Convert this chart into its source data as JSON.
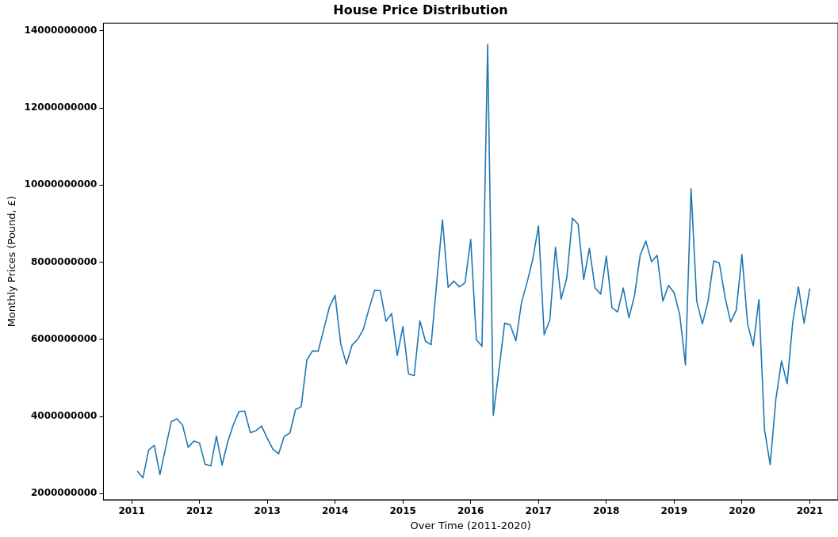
{
  "chart_data": {
    "type": "line",
    "title": "House Price Distribution",
    "xlabel": "Over Time (2011-2020)",
    "ylabel": "Monthly Prices (Pound, £)",
    "x": [
      "2011-02",
      "2011-03",
      "2011-04",
      "2011-05",
      "2011-06",
      "2011-07",
      "2011-08",
      "2011-09",
      "2011-10",
      "2011-11",
      "2011-12",
      "2012-01",
      "2012-02",
      "2012-03",
      "2012-04",
      "2012-05",
      "2012-06",
      "2012-07",
      "2012-08",
      "2012-09",
      "2012-10",
      "2012-11",
      "2012-12",
      "2013-01",
      "2013-02",
      "2013-03",
      "2013-04",
      "2013-05",
      "2013-06",
      "2013-07",
      "2013-08",
      "2013-09",
      "2013-10",
      "2013-11",
      "2013-12",
      "2014-01",
      "2014-02",
      "2014-03",
      "2014-04",
      "2014-05",
      "2014-06",
      "2014-07",
      "2014-08",
      "2014-09",
      "2014-10",
      "2014-11",
      "2014-12",
      "2015-01",
      "2015-02",
      "2015-03",
      "2015-04",
      "2015-05",
      "2015-06",
      "2015-07",
      "2015-08",
      "2015-09",
      "2015-10",
      "2015-11",
      "2015-12",
      "2016-01",
      "2016-02",
      "2016-03",
      "2016-04",
      "2016-05",
      "2016-06",
      "2016-07",
      "2016-08",
      "2016-09",
      "2016-10",
      "2016-11",
      "2016-12",
      "2017-01",
      "2017-02",
      "2017-03",
      "2017-04",
      "2017-05",
      "2017-06",
      "2017-07",
      "2017-08",
      "2017-09",
      "2017-10",
      "2017-11",
      "2017-12",
      "2018-01",
      "2018-02",
      "2018-03",
      "2018-04",
      "2018-05",
      "2018-06",
      "2018-07",
      "2018-08",
      "2018-09",
      "2018-10",
      "2018-11",
      "2018-12",
      "2019-01",
      "2019-02",
      "2019-03",
      "2019-04",
      "2019-05",
      "2019-06",
      "2019-07",
      "2019-08",
      "2019-09",
      "2019-10",
      "2019-11",
      "2019-12",
      "2020-01",
      "2020-02",
      "2020-03",
      "2020-04",
      "2020-05",
      "2020-06",
      "2020-07",
      "2020-08",
      "2020-09",
      "2020-10",
      "2020-11",
      "2020-12",
      "2021-01"
    ],
    "series": [
      {
        "color": "#1f77b4",
        "values": [
          2580000000,
          2410000000,
          3130000000,
          3250000000,
          2490000000,
          3180000000,
          3860000000,
          3940000000,
          3780000000,
          3200000000,
          3360000000,
          3310000000,
          2760000000,
          2720000000,
          3490000000,
          2740000000,
          3340000000,
          3790000000,
          4130000000,
          4140000000,
          3580000000,
          3630000000,
          3750000000,
          3430000000,
          3150000000,
          3030000000,
          3480000000,
          3570000000,
          4180000000,
          4250000000,
          5460000000,
          5700000000,
          5690000000,
          6260000000,
          6840000000,
          7140000000,
          5880000000,
          5360000000,
          5850000000,
          6000000000,
          6260000000,
          6790000000,
          7270000000,
          7260000000,
          6470000000,
          6670000000,
          5580000000,
          6330000000,
          5100000000,
          5060000000,
          6480000000,
          5950000000,
          5860000000,
          7500000000,
          9100000000,
          7350000000,
          7510000000,
          7360000000,
          7470000000,
          8590000000,
          5990000000,
          5820000000,
          13650000000,
          4030000000,
          5200000000,
          6420000000,
          6370000000,
          5960000000,
          6960000000,
          7490000000,
          8090000000,
          8940000000,
          6120000000,
          6500000000,
          8390000000,
          7040000000,
          7590000000,
          9140000000,
          8990000000,
          7550000000,
          8360000000,
          7340000000,
          7170000000,
          8160000000,
          6820000000,
          6710000000,
          7330000000,
          6560000000,
          7140000000,
          8190000000,
          8550000000,
          8010000000,
          8180000000,
          6990000000,
          7400000000,
          7210000000,
          6630000000,
          5340000000,
          9910000000,
          6990000000,
          6400000000,
          6990000000,
          8030000000,
          7980000000,
          7100000000,
          6450000000,
          6760000000,
          8200000000,
          6400000000,
          5830000000,
          7030000000,
          3650000000,
          2750000000,
          4440000000,
          5440000000,
          4850000000,
          6450000000,
          7360000000,
          6420000000,
          7320000000
        ]
      }
    ],
    "xlim": [
      "2010-08",
      "2021-06"
    ],
    "xticks": [
      "2011",
      "2012",
      "2013",
      "2014",
      "2015",
      "2016",
      "2017",
      "2018",
      "2019",
      "2020",
      "2021"
    ],
    "ylim": [
      1840000000,
      14200000000
    ],
    "yticks": [
      2000000000,
      4000000000,
      6000000000,
      8000000000,
      10000000000,
      12000000000,
      14000000000
    ],
    "grid": false,
    "legend": false,
    "marker": "none",
    "line_style": "solid"
  }
}
